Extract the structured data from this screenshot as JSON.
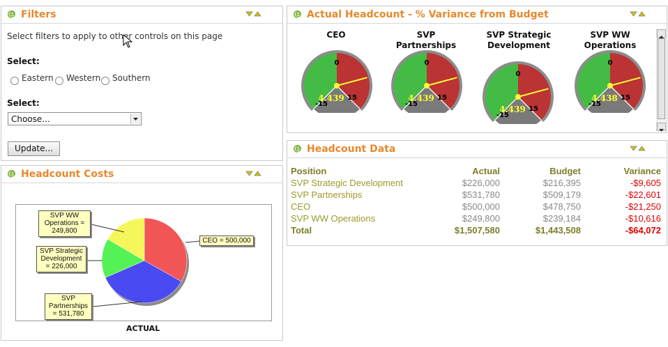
{
  "filters": {
    "title": "Filters",
    "description": "Select filters to apply to other controls on this page",
    "select1_label": "Select:",
    "radios": [
      "Eastern",
      "Western",
      "Southern"
    ],
    "select2_label": "Select:",
    "select2_value": "Choose...",
    "update_button": "Update..."
  },
  "costs": {
    "title": "Headcount Costs",
    "chart_title": "ACTUAL",
    "chart_data": {
      "type": "pie",
      "title": "ACTUAL",
      "slices": [
        {
          "name": "CEO",
          "value": 500000,
          "label": "CEO = 500,000",
          "color": "#f25555"
        },
        {
          "name": "SVP Partnerships",
          "value": 531780,
          "label": "SVP Partnerships = 531,780",
          "color": "#4a4af2"
        },
        {
          "name": "SVP Strategic Development",
          "value": 226000,
          "label": "SVP Strategic Development = 226,000",
          "color": "#55f255"
        },
        {
          "name": "SVP WW Operations",
          "value": 249800,
          "label": "SVP WW Operations = 249,800",
          "color": "#f6f65a"
        }
      ]
    },
    "labels": {
      "ops": "SVP WW Operations = 249,800",
      "strat": "SVP Strategic Development = 226,000",
      "part": "SVP Partnerships = 531,780",
      "ceo": "CEO = 500,000"
    }
  },
  "variance": {
    "title": "Actual Headcount - % Variance from Budget",
    "gauges": [
      {
        "name": "CEO",
        "value": 4.439,
        "display": "4.439",
        "scale_min": "-15",
        "scale_zero": "0",
        "scale_max": "15"
      },
      {
        "name": "SVP Partnerships",
        "value": 4.439,
        "display": "4.439",
        "scale_min": "-15",
        "scale_zero": "0",
        "scale_max": "15"
      },
      {
        "name": "SVP Strategic Development",
        "value": 4.439,
        "display": "4.439",
        "scale_min": "-15",
        "scale_zero": "0",
        "scale_max": "15"
      },
      {
        "name": "SVP WW Operations",
        "value": 4.438,
        "display": "4.438",
        "scale_min": "-15",
        "scale_zero": "0",
        "scale_max": "15"
      }
    ]
  },
  "data_table": {
    "title": "Headcount Data",
    "headers": [
      "Position",
      "Actual",
      "Budget",
      "Variance"
    ],
    "rows": [
      [
        "SVP Strategic Development",
        "$226,000",
        "$216,395",
        "-$9,605"
      ],
      [
        "SVP Partnerships",
        "$531,780",
        "$509,179",
        "-$22,601"
      ],
      [
        "CEO",
        "$500,000",
        "$478,750",
        "-$21,250"
      ],
      [
        "SVP WW Operations",
        "$249,800",
        "$239,184",
        "-$10,616"
      ]
    ],
    "total": [
      "Total",
      "$1,507,580",
      "$1,443,508",
      "-$64,072"
    ]
  },
  "colors": {
    "title_orange": "#e8882b",
    "olive": "#7d7d2a",
    "link_green": "#9a9a2a",
    "negative_red": "#e00000",
    "gauge_green": "#44bb44",
    "gauge_red": "#bb3333"
  }
}
